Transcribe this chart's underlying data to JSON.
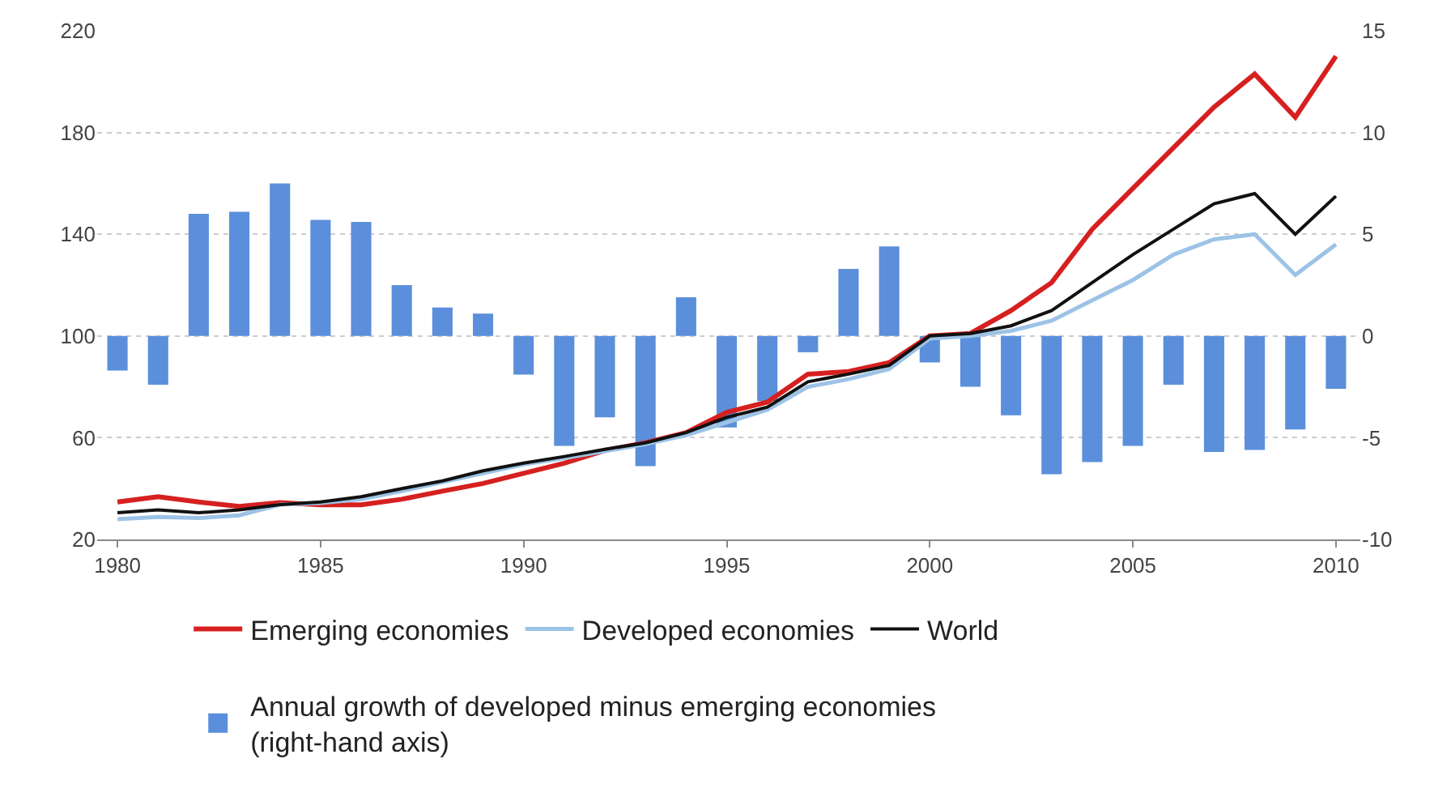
{
  "chart_data": {
    "type": "line",
    "x": [
      1980,
      1981,
      1982,
      1983,
      1984,
      1985,
      1986,
      1987,
      1988,
      1989,
      1990,
      1991,
      1992,
      1993,
      1994,
      1995,
      1996,
      1997,
      1998,
      1999,
      2000,
      2001,
      2002,
      2003,
      2004,
      2005,
      2006,
      2007,
      2008,
      2009,
      2010
    ],
    "series": [
      {
        "name": "Annual growth of developed minus emerging economies\n(right-hand axis)",
        "type": "bar",
        "axis": "y2",
        "color": "#5b8fdb",
        "values": [
          -1.7,
          -2.4,
          6.0,
          6.1,
          7.5,
          5.7,
          5.6,
          2.5,
          1.4,
          1.1,
          -1.9,
          -5.4,
          -4.0,
          -6.4,
          1.9,
          -4.5,
          -3.2,
          -0.8,
          3.3,
          4.4,
          -1.3,
          -2.5,
          -3.9,
          -6.8,
          -6.2,
          -5.4,
          -2.4,
          -5.7,
          -5.6,
          -4.6,
          -2.6
        ]
      },
      {
        "name": "Emerging economies",
        "color": "#d62020",
        "values": [
          34.7,
          36.8,
          34.7,
          33,
          34.5,
          33.6,
          33.6,
          35.8,
          39,
          42,
          46,
          50,
          55,
          58,
          62,
          70,
          74,
          85,
          86,
          89.5,
          100,
          101,
          110,
          121,
          142,
          158,
          174,
          190,
          203,
          186,
          210
        ]
      },
      {
        "name": "Developed economies",
        "color": "#9cc3e6",
        "values": [
          28,
          28.8,
          28.4,
          29.5,
          33.7,
          34.3,
          35.8,
          39,
          42.5,
          46,
          49.5,
          52,
          54.7,
          57.5,
          61,
          66,
          71,
          80,
          83,
          87,
          99,
          100,
          102,
          106,
          114,
          122,
          132,
          138,
          140,
          124,
          136
        ]
      },
      {
        "name": "World",
        "color": "#111111",
        "values": [
          30.5,
          31.6,
          30.5,
          31.6,
          33.7,
          34.7,
          36.8,
          40,
          43,
          47,
          50,
          52.6,
          55.4,
          58,
          62,
          68,
          72,
          82,
          85,
          88.4,
          100,
          101,
          104,
          110,
          121,
          132,
          142,
          152,
          156,
          140,
          155
        ]
      }
    ],
    "xlim": [
      1979.5,
      2010.6
    ],
    "xticks": [
      1980,
      1985,
      1990,
      1995,
      2000,
      2005,
      2010
    ],
    "ylim": [
      20,
      220
    ],
    "yticks": [
      20,
      60,
      100,
      140,
      180,
      220
    ],
    "y2lim": [
      -10,
      15
    ],
    "y2ticks": [
      -10,
      -5,
      0,
      5,
      10,
      15
    ],
    "grid": "y",
    "legend": "bottom",
    "line_style": "solid",
    "marker": "none"
  }
}
